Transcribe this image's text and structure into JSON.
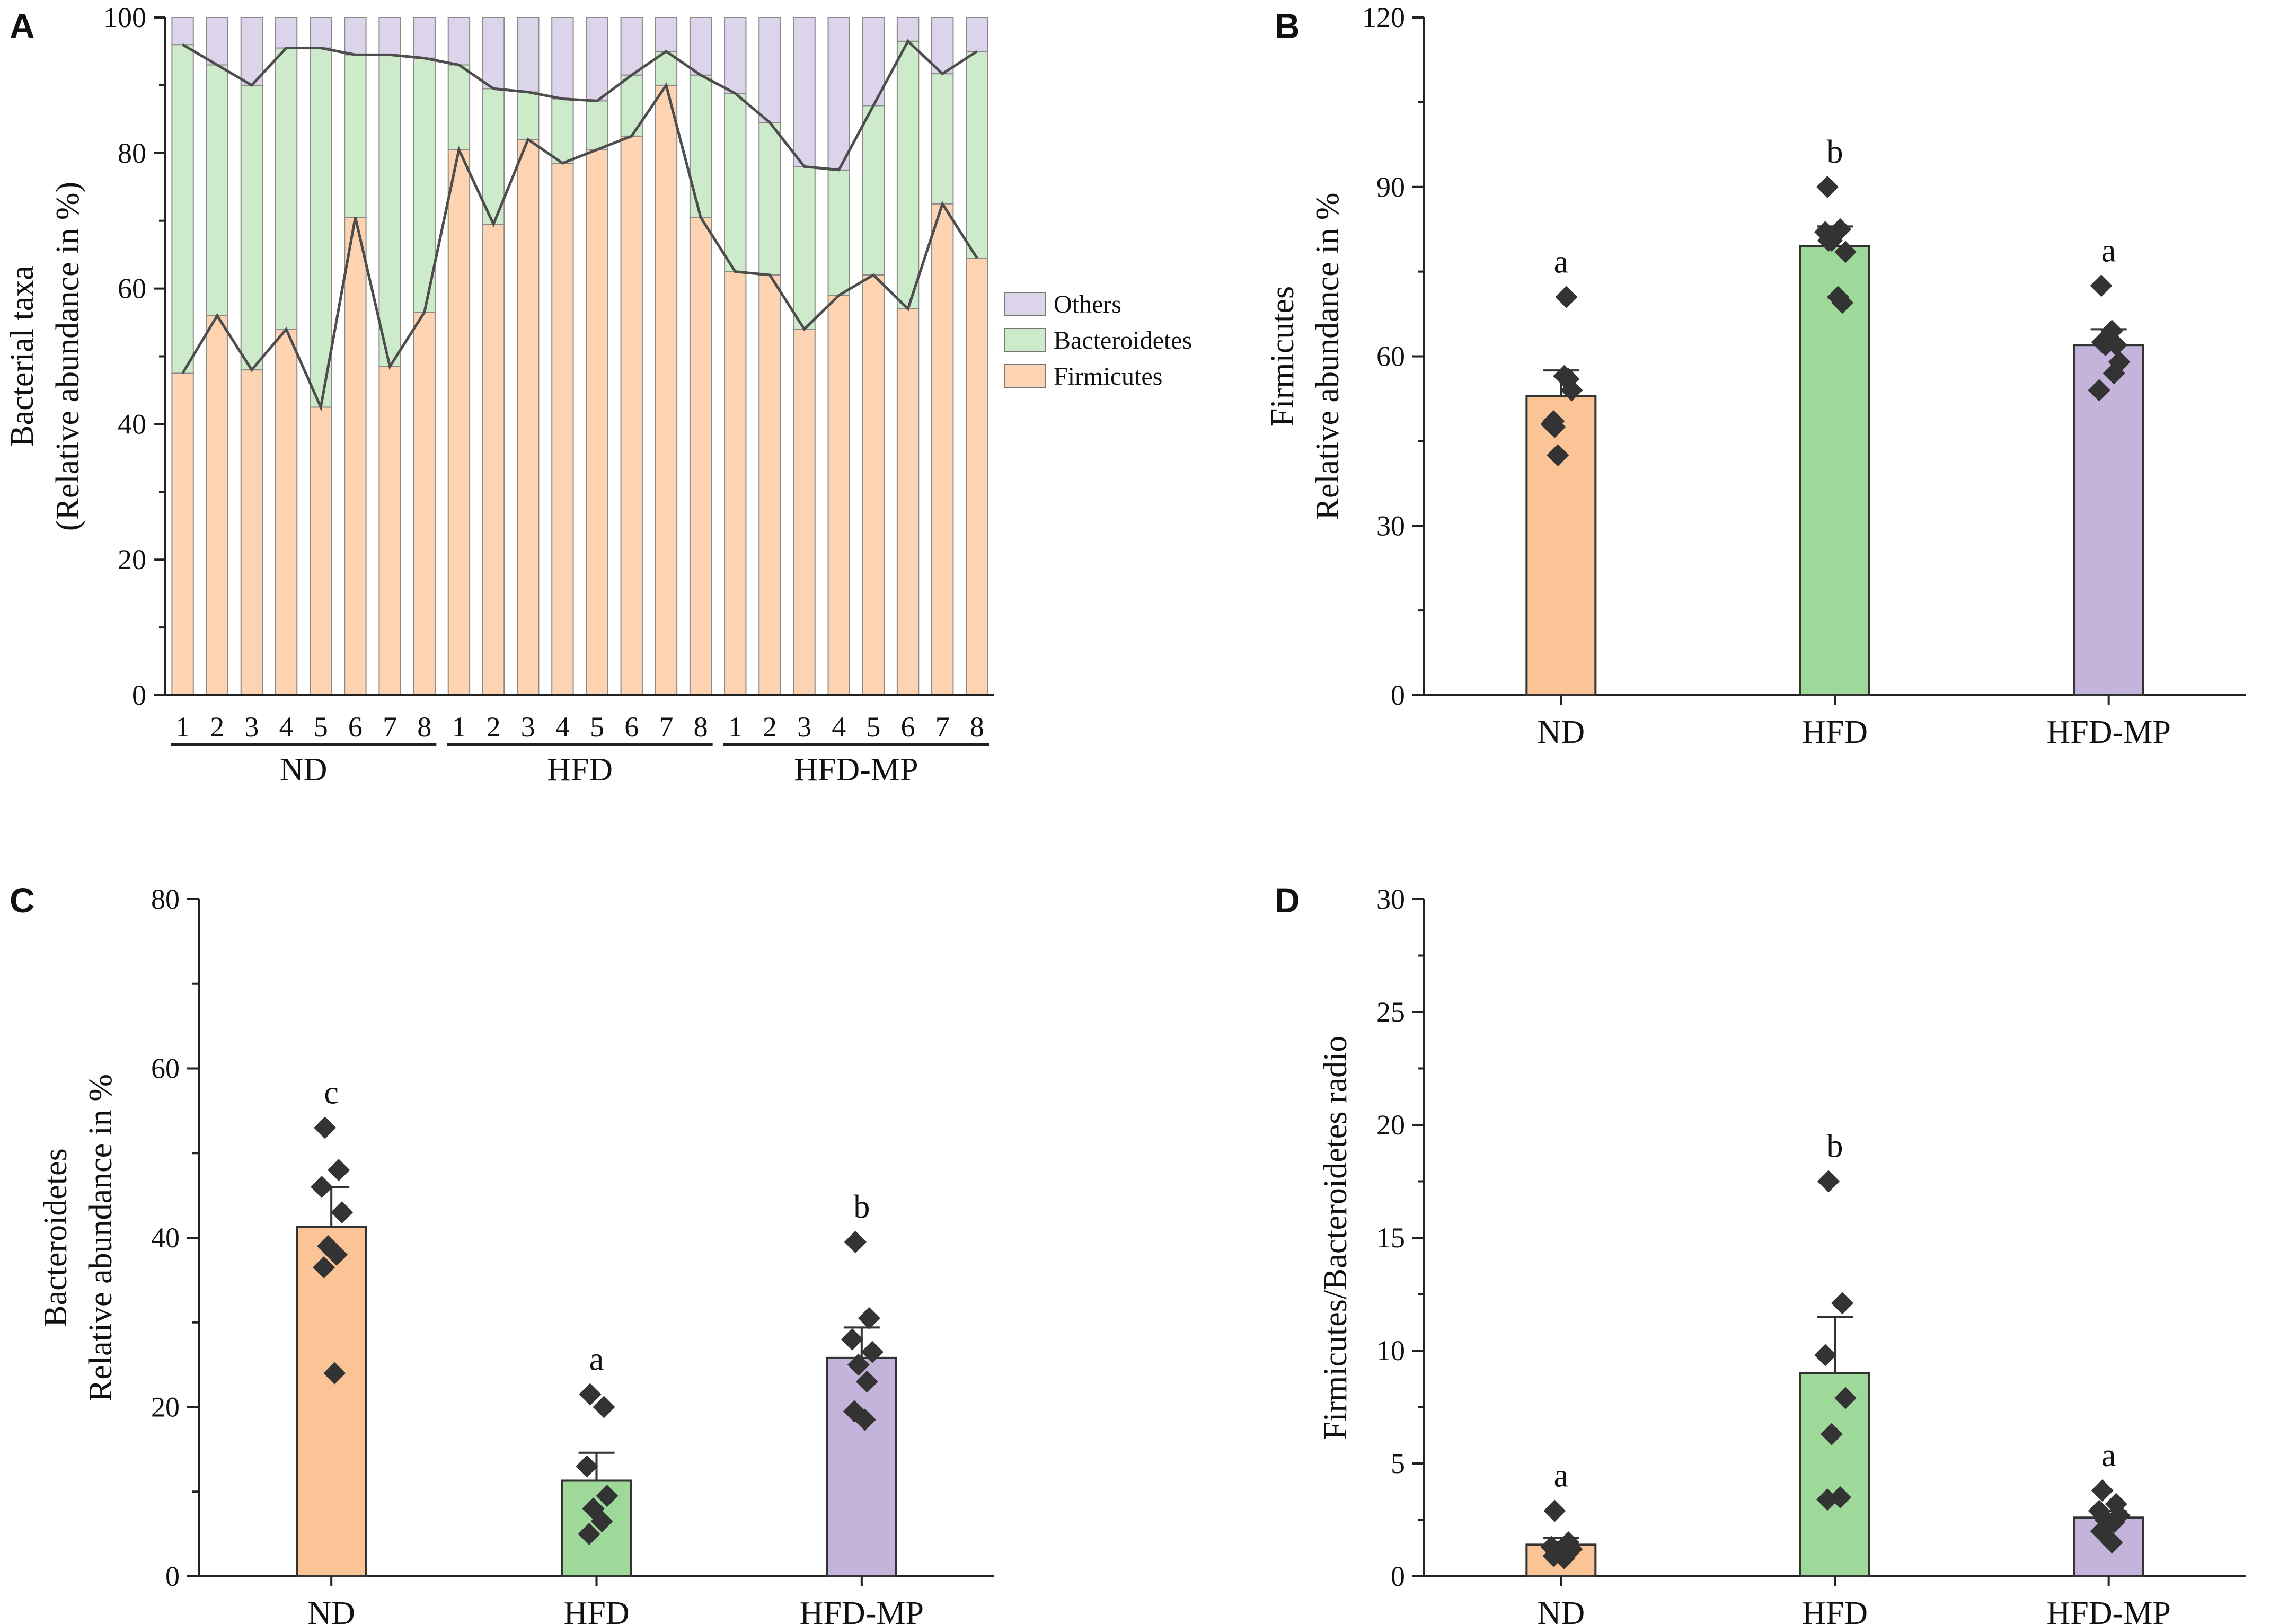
{
  "colors": {
    "firmicutes": "#FDD3B1",
    "bacteroidetes": "#CDEBCB",
    "others": "#DCD4EA",
    "nd": "#FBC497",
    "hfd": "#9ED99A",
    "hfdmp": "#C4B3DA",
    "point": "#333333",
    "line": "#4d4d4d"
  },
  "chart_data": [
    {
      "panel": "A",
      "type": "bar",
      "stacked": true,
      "ylabel": "Bacterial taxa",
      "ylabel2": "(Relative abundance in %)",
      "ylim": [
        0,
        100
      ],
      "yticks": [
        "0",
        "20",
        "40",
        "60",
        "80",
        "100"
      ],
      "sample_labels": [
        "1",
        "2",
        "3",
        "4",
        "5",
        "6",
        "7",
        "8",
        "1",
        "2",
        "3",
        "4",
        "5",
        "6",
        "7",
        "8",
        "1",
        "2",
        "3",
        "4",
        "5",
        "6",
        "7",
        "8"
      ],
      "groups": [
        "ND",
        "HFD",
        "HFD-MP"
      ],
      "legend": [
        "Others",
        "Bacteroidetes",
        "Firmicutes"
      ],
      "legend_position": "right",
      "series": [
        {
          "name": "Firmicutes",
          "values": [
            47.5,
            56,
            48,
            54,
            42.5,
            70.5,
            48.5,
            56.5,
            80.5,
            69.5,
            82,
            78.5,
            80.5,
            82.5,
            90,
            70.5,
            62.5,
            62,
            54,
            59,
            62,
            57,
            72.5,
            64.5
          ]
        },
        {
          "name": "Bacteroidetes",
          "values": [
            48.5,
            37,
            42,
            41.5,
            53,
            24,
            46,
            37.5,
            12.5,
            20,
            7,
            9.5,
            7.2,
            9,
            5,
            21,
            26.3,
            22.5,
            24,
            18.5,
            25,
            39.5,
            19.2,
            30.5
          ]
        },
        {
          "name": "Others",
          "values": [
            4,
            7,
            10,
            4.5,
            4.5,
            5.5,
            5.5,
            6,
            7,
            10.5,
            11,
            12,
            12.3,
            8.5,
            5,
            8.5,
            11.2,
            15.5,
            22,
            22.5,
            13,
            3.5,
            8.3,
            5
          ]
        }
      ]
    },
    {
      "panel": "B",
      "type": "bar",
      "ylabel": "Firmicutes",
      "ylabel2": "Relative abundance in %",
      "ylim": [
        0,
        120
      ],
      "yticks": [
        "0",
        "30",
        "60",
        "90",
        "120"
      ],
      "categories": [
        "ND",
        "HFD",
        "HFD-MP"
      ],
      "values": [
        53,
        79.5,
        62
      ],
      "errors": [
        4.5,
        3.5,
        2.8
      ],
      "significance": [
        "a",
        "b",
        "a"
      ],
      "points": [
        [
          47.5,
          56,
          48,
          54,
          42.5,
          70.5,
          48.5,
          56.5
        ],
        [
          80.5,
          69.5,
          82,
          78.5,
          80.5,
          82.5,
          90,
          70.5
        ],
        [
          62.5,
          62,
          54,
          59,
          62,
          57,
          72.5,
          64.5
        ]
      ]
    },
    {
      "panel": "C",
      "type": "bar",
      "ylabel": "Bacteroidetes",
      "ylabel2": "Relative abundance in %",
      "ylim": [
        0,
        80
      ],
      "yticks": [
        "0",
        "20",
        "40",
        "60",
        "80"
      ],
      "categories": [
        "ND",
        "HFD",
        "HFD-MP"
      ],
      "values": [
        41.3,
        11.3,
        25.8
      ],
      "errors": [
        4.7,
        3.3,
        3.6
      ],
      "significance": [
        "c",
        "a",
        "b"
      ],
      "points": [
        [
          53,
          48,
          46,
          43,
          39,
          38,
          36.5,
          24
        ],
        [
          21.5,
          20,
          13,
          9.5,
          8,
          6.5,
          5
        ],
        [
          39.5,
          30.5,
          28,
          26.5,
          25,
          23,
          19.5,
          18.5
        ]
      ]
    },
    {
      "panel": "D",
      "type": "bar",
      "ylabel": "Firmicutes/Bacteroidetes radio",
      "ylabel2": "",
      "ylim": [
        0,
        30
      ],
      "yticks": [
        "0",
        "5",
        "10",
        "15",
        "20",
        "25",
        "30"
      ],
      "categories": [
        "ND",
        "HFD",
        "HFD-MP"
      ],
      "values": [
        1.4,
        9.0,
        2.6
      ],
      "errors": [
        0.3,
        2.5,
        0.3
      ],
      "significance": [
        "a",
        "b",
        "a"
      ],
      "points": [
        [
          2.9,
          1.5,
          1.3,
          1.2,
          1.1,
          1.0,
          0.9,
          0.8
        ],
        [
          17.5,
          12.1,
          9.8,
          7.9,
          6.3,
          3.5,
          3.4
        ],
        [
          3.8,
          3.2,
          2.9,
          2.7,
          2.5,
          2.4,
          2.0,
          1.5
        ]
      ]
    }
  ]
}
